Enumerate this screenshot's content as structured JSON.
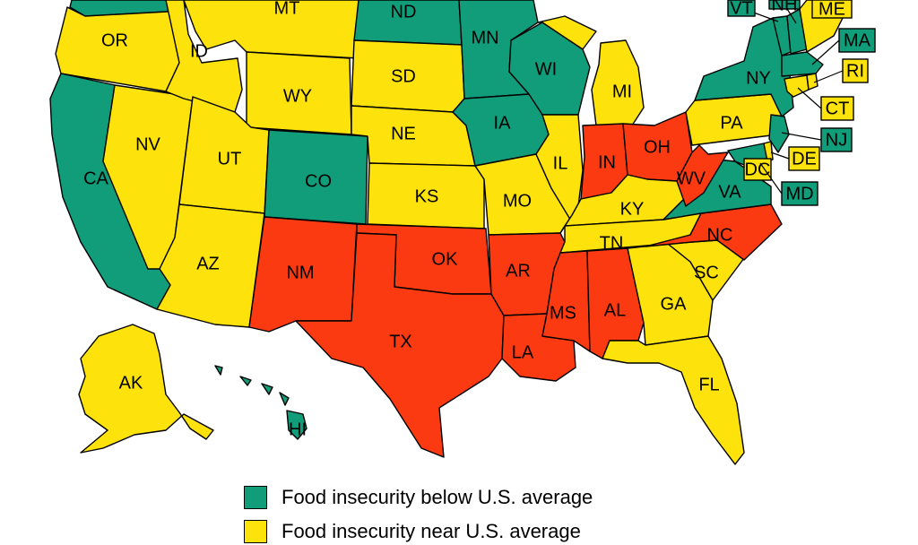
{
  "colors": {
    "below": "#119c7a",
    "near": "#fde20b",
    "above": "#fc3a12"
  },
  "legend": [
    {
      "category": "below",
      "label": "Food insecurity below U.S. average"
    },
    {
      "category": "near",
      "label": "Food insecurity near U.S. average"
    }
  ],
  "states": [
    {
      "code": "WA",
      "label": "",
      "category": "below"
    },
    {
      "code": "OR",
      "label": "OR",
      "category": "near"
    },
    {
      "code": "CA",
      "label": "CA",
      "category": "below"
    },
    {
      "code": "NV",
      "label": "NV",
      "category": "near"
    },
    {
      "code": "ID",
      "label": "ID",
      "category": "near"
    },
    {
      "code": "MT",
      "label": "MT",
      "category": "near"
    },
    {
      "code": "WY",
      "label": "WY",
      "category": "near"
    },
    {
      "code": "UT",
      "label": "UT",
      "category": "near"
    },
    {
      "code": "AZ",
      "label": "AZ",
      "category": "near"
    },
    {
      "code": "CO",
      "label": "CO",
      "category": "below"
    },
    {
      "code": "NM",
      "label": "NM",
      "category": "above"
    },
    {
      "code": "ND",
      "label": "ND",
      "category": "below"
    },
    {
      "code": "SD",
      "label": "SD",
      "category": "near"
    },
    {
      "code": "NE",
      "label": "NE",
      "category": "near"
    },
    {
      "code": "KS",
      "label": "KS",
      "category": "near"
    },
    {
      "code": "OK",
      "label": "OK",
      "category": "above"
    },
    {
      "code": "TX",
      "label": "TX",
      "category": "above"
    },
    {
      "code": "MN",
      "label": "MN",
      "category": "below"
    },
    {
      "code": "IA",
      "label": "IA",
      "category": "below"
    },
    {
      "code": "MO",
      "label": "MO",
      "category": "near"
    },
    {
      "code": "AR",
      "label": "AR",
      "category": "above"
    },
    {
      "code": "LA",
      "label": "LA",
      "category": "above"
    },
    {
      "code": "WI",
      "label": "WI",
      "category": "below"
    },
    {
      "code": "IL",
      "label": "IL",
      "category": "near"
    },
    {
      "code": "MI",
      "label": "MI",
      "category": "near"
    },
    {
      "code": "IN",
      "label": "IN",
      "category": "above"
    },
    {
      "code": "OH",
      "label": "OH",
      "category": "above"
    },
    {
      "code": "KY",
      "label": "KY",
      "category": "near"
    },
    {
      "code": "TN",
      "label": "TN",
      "category": "near"
    },
    {
      "code": "MS",
      "label": "MS",
      "category": "above"
    },
    {
      "code": "AL",
      "label": "AL",
      "category": "above"
    },
    {
      "code": "GA",
      "label": "GA",
      "category": "near"
    },
    {
      "code": "FL",
      "label": "FL",
      "category": "near"
    },
    {
      "code": "SC",
      "label": "SC",
      "category": "near"
    },
    {
      "code": "NC",
      "label": "NC",
      "category": "above"
    },
    {
      "code": "VA",
      "label": "VA",
      "category": "below"
    },
    {
      "code": "WV",
      "label": "WV",
      "category": "above"
    },
    {
      "code": "PA",
      "label": "PA",
      "category": "near"
    },
    {
      "code": "NY",
      "label": "NY",
      "category": "below"
    },
    {
      "code": "NJ",
      "label": "",
      "category": "below"
    },
    {
      "code": "MD",
      "label": "",
      "category": "below"
    },
    {
      "code": "DE",
      "label": "",
      "category": "near"
    },
    {
      "code": "VT",
      "label": "",
      "category": "below"
    },
    {
      "code": "NH",
      "label": "",
      "category": "below"
    },
    {
      "code": "ME",
      "label": "",
      "category": "near"
    },
    {
      "code": "MA",
      "label": "",
      "category": "below"
    },
    {
      "code": "CT",
      "label": "",
      "category": "near"
    },
    {
      "code": "RI",
      "label": "",
      "category": "near"
    },
    {
      "code": "AK",
      "label": "AK",
      "category": "near"
    },
    {
      "code": "HI",
      "label": "HI",
      "category": "below"
    }
  ],
  "callouts": [
    {
      "code": "VT",
      "label": "VT",
      "category": "below"
    },
    {
      "code": "NH",
      "label": "NH",
      "category": "below"
    },
    {
      "code": "ME",
      "label": "ME",
      "category": "near"
    },
    {
      "code": "MA",
      "label": "MA",
      "category": "below"
    },
    {
      "code": "RI",
      "label": "RI",
      "category": "near"
    },
    {
      "code": "CT",
      "label": "CT",
      "category": "near"
    },
    {
      "code": "NJ",
      "label": "NJ",
      "category": "below"
    },
    {
      "code": "DE",
      "label": "DE",
      "category": "near"
    },
    {
      "code": "DC",
      "label": "DC",
      "category": "near"
    },
    {
      "code": "MD",
      "label": "MD",
      "category": "below"
    }
  ]
}
